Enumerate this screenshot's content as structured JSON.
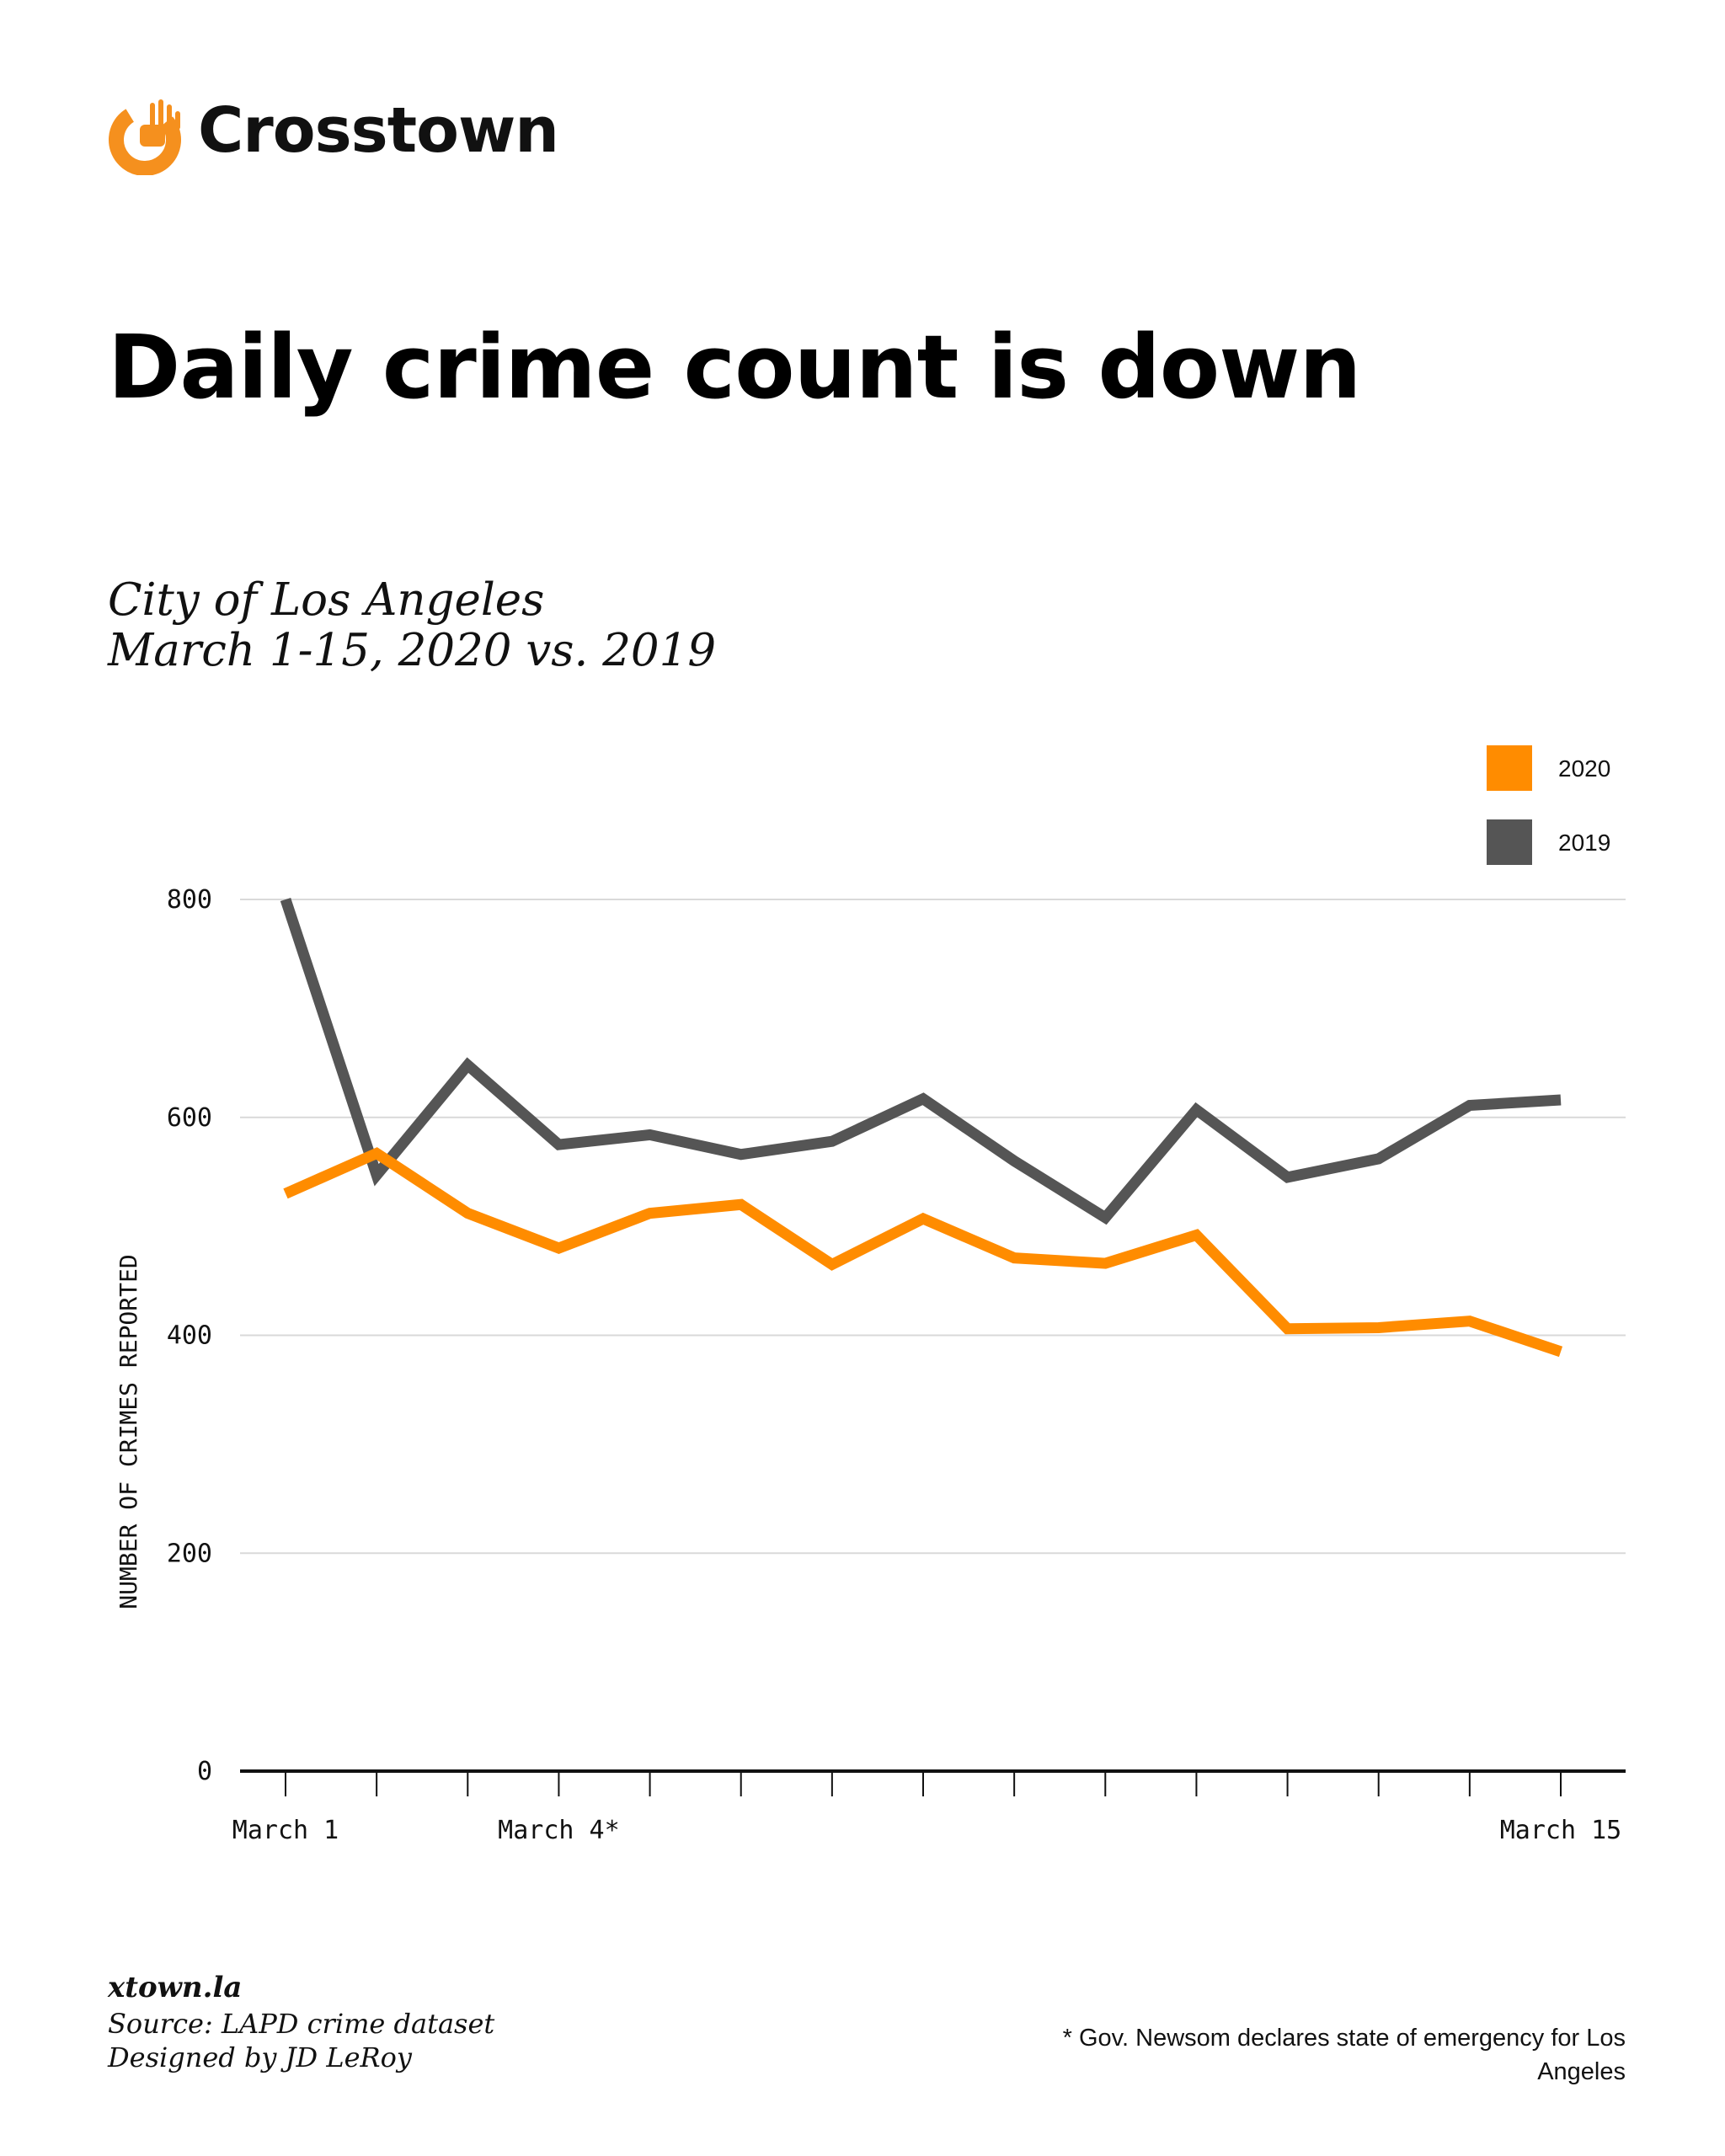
{
  "brand": {
    "name": "Crosstown",
    "accent": "#F5901E",
    "logo_icon": "crosstown-hand-logo"
  },
  "title": "Daily crime count is down",
  "subtitle_line1": "City of Los Angeles",
  "subtitle_line2": "March 1-15, 2020 vs. 2019",
  "chart_data": {
    "type": "line",
    "title": "Daily crime count is down",
    "subtitle": "City of Los Angeles March 1-15, 2020 vs. 2019",
    "ylabel": "NUMBER OF CRIMES REPORTED",
    "xlabel": "",
    "ylim": [
      0,
      800
    ],
    "yticks": [
      0,
      200,
      400,
      600,
      800
    ],
    "x": [
      1,
      2,
      3,
      4,
      5,
      6,
      7,
      8,
      9,
      10,
      11,
      12,
      13,
      14,
      15
    ],
    "x_tick_labels": [
      {
        "x": 1,
        "label": "March 1"
      },
      {
        "x": 4,
        "label": "March 4*"
      },
      {
        "x": 15,
        "label": "March 15"
      }
    ],
    "grid": true,
    "legend": "top-right",
    "series": [
      {
        "name": "2020",
        "color": "#FF8C00",
        "values": [
          530,
          567,
          512,
          480,
          512,
          520,
          465,
          507,
          471,
          466,
          492,
          406,
          407,
          413,
          385
        ]
      },
      {
        "name": "2019",
        "color": "#555555",
        "values": [
          800,
          547,
          648,
          575,
          584,
          566,
          578,
          617,
          560,
          508,
          607,
          545,
          562,
          611,
          616
        ]
      }
    ],
    "annotation": "* Gov. Newsom  declares state of emergency for Los Angeles"
  },
  "footer": {
    "site": "xtown.la",
    "source": "Source: LAPD crime dataset",
    "designer": "Designed by JD LeRoy"
  },
  "footnote": "* Gov. Newsom  declares state of emergency for Los Angeles"
}
